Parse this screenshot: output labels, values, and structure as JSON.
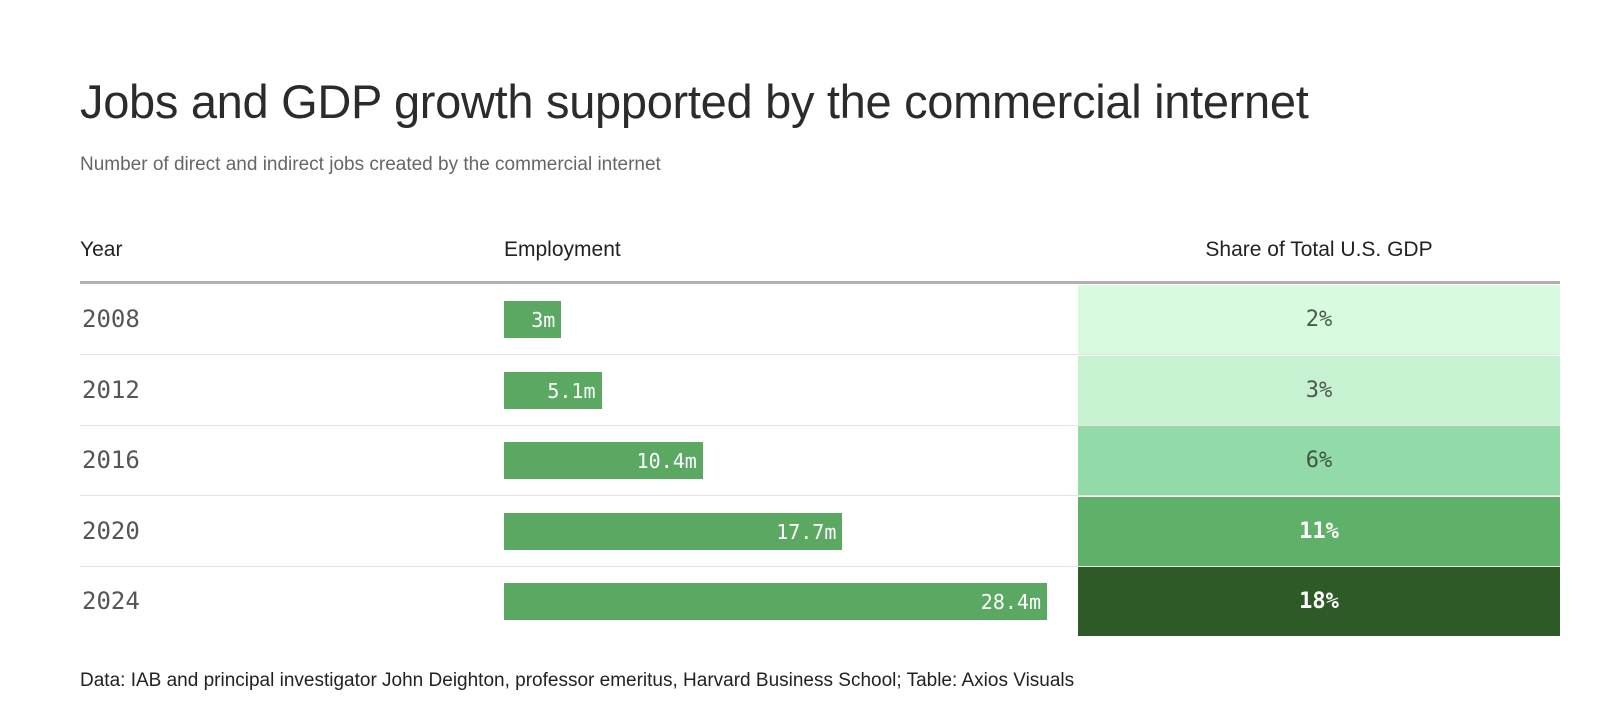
{
  "header": {
    "title": "Jobs and GDP growth supported by the commercial internet",
    "subtitle": "Number of direct and indirect jobs created by the commercial internet"
  },
  "chart_data": {
    "type": "table",
    "columns": [
      "Year",
      "Employment",
      "Share of Total U.S. GDP"
    ],
    "rows": [
      {
        "year": "2008",
        "employment": 3.0,
        "employment_label": "3m",
        "gdp_share": 2,
        "gdp_label": "2%",
        "gdp_color": "#d8fadf",
        "gdp_text_color": "#4a5a4e"
      },
      {
        "year": "2012",
        "employment": 5.1,
        "employment_label": "5.1m",
        "gdp_share": 3,
        "gdp_label": "3%",
        "gdp_color": "#c6f2d1",
        "gdp_text_color": "#4a5a4e"
      },
      {
        "year": "2016",
        "employment": 10.4,
        "employment_label": "10.4m",
        "gdp_share": 6,
        "gdp_label": "6%",
        "gdp_color": "#92dba8",
        "gdp_text_color": "#3f5446"
      },
      {
        "year": "2020",
        "employment": 17.7,
        "employment_label": "17.7m",
        "gdp_share": 11,
        "gdp_label": "11%",
        "gdp_color": "#5fb068",
        "gdp_text_color": "#ffffff"
      },
      {
        "year": "2024",
        "employment": 28.4,
        "employment_label": "28.4m",
        "gdp_share": 18,
        "gdp_label": "18%",
        "gdp_color": "#2d5a26",
        "gdp_text_color": "#ffffff"
      }
    ],
    "bar_color": "#5aa862"
  },
  "footer": {
    "source": "Data: IAB and principal investigator John Deighton, professor emeritus, Harvard Business School; Table: Axios Visuals"
  }
}
